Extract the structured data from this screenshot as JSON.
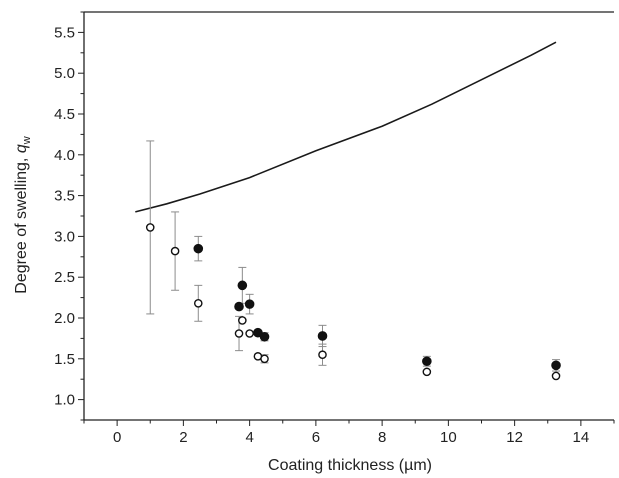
{
  "chart_data": {
    "type": "scatter",
    "title": "",
    "xlabel": "Coating thickness (µm)",
    "ylabel": "Degree of swelling, ",
    "ylabel_symbol": "q",
    "ylabel_subscript": "w",
    "xlim": [
      -1,
      15
    ],
    "ylim": [
      0.75,
      5.75
    ],
    "xticks": [
      0,
      2,
      4,
      6,
      8,
      10,
      12,
      14
    ],
    "yticks": [
      1.0,
      1.5,
      2.0,
      2.5,
      3.0,
      3.5,
      4.0,
      4.5,
      5.0,
      5.5
    ],
    "x_minor_step": 1,
    "y_minor_step": 0.25,
    "grid": false,
    "legend": "none",
    "colors": {
      "axis": "#222222",
      "line": "#1a1a1a",
      "errorbar": "#8c8c8c"
    },
    "series": [
      {
        "marker": "filled-circle",
        "points": [
          {
            "x": 2.45,
            "y": 2.85,
            "err": 0.15
          },
          {
            "x": 3.68,
            "y": 2.14,
            "err": 0.0
          },
          {
            "x": 3.78,
            "y": 2.4,
            "err": 0.22
          },
          {
            "x": 4.0,
            "y": 2.17,
            "err": 0.12
          },
          {
            "x": 4.25,
            "y": 1.82,
            "err": 0.0
          },
          {
            "x": 4.45,
            "y": 1.77,
            "err": 0.05
          },
          {
            "x": 6.2,
            "y": 1.78,
            "err": 0.13
          },
          {
            "x": 9.35,
            "y": 1.47,
            "err": 0.06
          },
          {
            "x": 13.25,
            "y": 1.42,
            "err": 0.07
          }
        ]
      },
      {
        "marker": "open-circle",
        "points": [
          {
            "x": 1.0,
            "y": 3.11,
            "err": 1.06
          },
          {
            "x": 1.75,
            "y": 2.82,
            "err": 0.48
          },
          {
            "x": 2.45,
            "y": 2.18,
            "err": 0.22
          },
          {
            "x": 3.68,
            "y": 1.81,
            "err": 0.21
          },
          {
            "x": 3.78,
            "y": 1.97,
            "err": 0.0
          },
          {
            "x": 4.0,
            "y": 1.81,
            "err": 0.0
          },
          {
            "x": 4.25,
            "y": 1.53,
            "err": 0.0
          },
          {
            "x": 4.45,
            "y": 1.5,
            "err": 0.05
          },
          {
            "x": 6.2,
            "y": 1.55,
            "err": 0.13
          },
          {
            "x": 9.35,
            "y": 1.34,
            "err": 0.0
          },
          {
            "x": 13.25,
            "y": 1.29,
            "err": 0.0
          }
        ]
      },
      {
        "marker": "line",
        "points": [
          {
            "x": 0.55,
            "y": 3.3
          },
          {
            "x": 1.5,
            "y": 3.4
          },
          {
            "x": 2.5,
            "y": 3.52
          },
          {
            "x": 4.0,
            "y": 3.72
          },
          {
            "x": 6.0,
            "y": 4.05
          },
          {
            "x": 8.0,
            "y": 4.35
          },
          {
            "x": 9.5,
            "y": 4.62
          },
          {
            "x": 11.0,
            "y": 4.92
          },
          {
            "x": 12.5,
            "y": 5.22
          },
          {
            "x": 13.25,
            "y": 5.38
          }
        ]
      }
    ]
  }
}
